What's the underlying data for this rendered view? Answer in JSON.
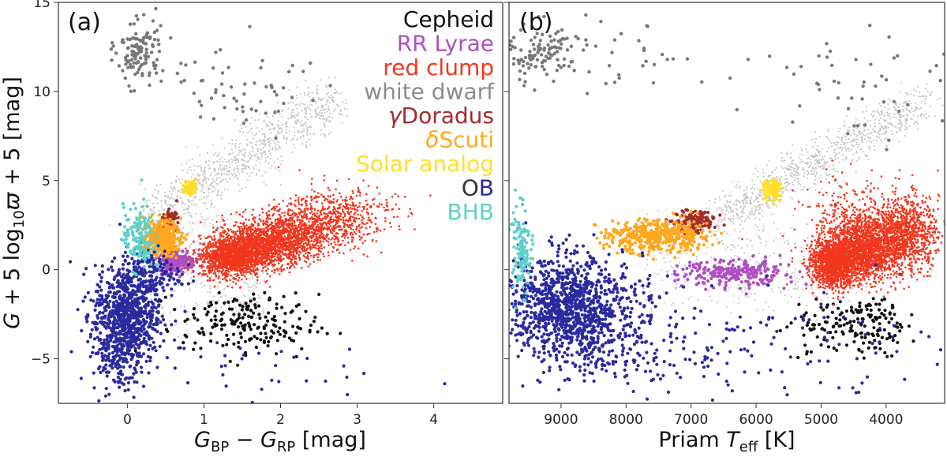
{
  "figure": {
    "ylabel": "G + 5 log₁₀ϖ + 5 [mag]"
  },
  "colors": {
    "background_stars": "#c8c8c8",
    "cepheid": "#111111",
    "rr_lyrae": "#b04fc0",
    "red_clump": "#f0371e",
    "white_dwarf": "#787878",
    "gamma_doradus": "#a52a2a",
    "delta_scuti": "#ffa81f",
    "solar_analog": "#ffdf2a",
    "ob": "#2a2a9e",
    "ob_first": "#333333",
    "bhb": "#5fd0c8"
  },
  "chart_data": [
    {
      "panel": "(a)",
      "type": "scatter",
      "xlabel": "G_BP − G_RP [mag]",
      "xlabel_main": "G",
      "xlabel_sub1": "BP",
      "xlabel_minus": " − ",
      "xlabel_sub2": "RP",
      "xlabel_unit": " [mag]",
      "ylabel": "G + 5 log10 ϖ + 5 [mag]",
      "xlim": [
        -0.9,
        4.9
      ],
      "ylim": [
        15.0,
        -7.5
      ],
      "xticks": [
        0,
        1,
        2,
        3,
        4
      ],
      "yticks": [
        -5,
        0,
        5,
        10,
        15
      ],
      "legend": {
        "position": "top-right",
        "entries": [
          {
            "label": "Cepheid",
            "color": "#111111"
          },
          {
            "label": "RR Lyrae",
            "color": "#b04fc0"
          },
          {
            "label": "red clump",
            "color": "#f0371e"
          },
          {
            "label": "white dwarf",
            "color": "#8c8c8c"
          },
          {
            "label": "γDoradus",
            "color": "#a52a2a"
          },
          {
            "label": "δScuti",
            "color": "#ffa81f"
          },
          {
            "label": "Solar analog",
            "color": "#ffdf2a"
          },
          {
            "label": "OB",
            "color": "#2a2a9e"
          },
          {
            "label": "BHB",
            "color": "#5fd0c8"
          }
        ]
      },
      "series": [
        {
          "name": "Cepheid",
          "color": "#111111",
          "centers": [
            [
              1.6,
              -3.2,
              0.45,
              0.9,
              150
            ],
            [
              1.4,
              -2.6,
              0.3,
              0.7,
              50
            ]
          ]
        },
        {
          "name": "RR Lyrae",
          "color": "#b04fc0",
          "centers": [
            [
              0.65,
              0.5,
              0.12,
              0.35,
              220
            ]
          ]
        },
        {
          "name": "red clump",
          "color": "#f0371e",
          "centers": [
            [
              1.35,
              0.7,
              0.2,
              0.55,
              1300
            ],
            [
              1.8,
              1.4,
              0.3,
              0.6,
              1300
            ],
            [
              2.3,
              2.2,
              0.35,
              0.7,
              800
            ],
            [
              2.8,
              3.2,
              0.35,
              0.8,
              350
            ]
          ]
        },
        {
          "name": "white dwarf",
          "color": "#787878",
          "centers": [
            [
              0.15,
              12.2,
              0.15,
              0.9,
              120
            ],
            [
              1.1,
              10.3,
              0.5,
              0.9,
              30
            ],
            [
              1.8,
              9.8,
              0.5,
              1.5,
              30
            ]
          ]
        },
        {
          "name": "γDoradus",
          "color": "#a52a2a",
          "centers": [
            [
              0.55,
              2.8,
              0.05,
              0.25,
              80
            ]
          ]
        },
        {
          "name": "δScuti",
          "color": "#ffa81f",
          "centers": [
            [
              0.45,
              1.8,
              0.12,
              0.5,
              350
            ]
          ]
        },
        {
          "name": "Solar analog",
          "color": "#ffdf2a",
          "centers": [
            [
              0.82,
              4.6,
              0.04,
              0.2,
              70
            ]
          ]
        },
        {
          "name": "OB",
          "color": "#2a2a9e",
          "centers": [
            [
              0.0,
              -2.5,
              0.22,
              1.4,
              700
            ],
            [
              -0.1,
              -4.5,
              0.18,
              1.2,
              200
            ],
            [
              0.3,
              -0.3,
              0.2,
              0.8,
              150
            ],
            [
              1.5,
              -5.5,
              0.8,
              0.9,
              30
            ]
          ]
        },
        {
          "name": "BHB",
          "color": "#5fd0c8",
          "centers": [
            [
              0.15,
              1.8,
              0.1,
              0.9,
              150
            ]
          ]
        }
      ]
    },
    {
      "panel": "(b)",
      "type": "scatter",
      "xlabel": "Priam T_eff [K]",
      "xlabel_main": "Priam ",
      "xlabel_var": "T",
      "xlabel_sub": "eff",
      "xlabel_unit": " [K]",
      "xlim": [
        9800,
        3100
      ],
      "ylim": [
        15.0,
        -7.5
      ],
      "xticks": [
        9000,
        8000,
        7000,
        6000,
        5000,
        4000
      ],
      "series": [
        {
          "name": "Cepheid",
          "color": "#111111",
          "centers": [
            [
              4800,
              -3.2,
              350,
              0.8,
              90
            ],
            [
              4100,
              -3.0,
              250,
              0.9,
              90
            ]
          ]
        },
        {
          "name": "RR Lyrae",
          "color": "#b04fc0",
          "centers": [
            [
              6300,
              -0.2,
              450,
              0.35,
              250
            ]
          ]
        },
        {
          "name": "red clump",
          "color": "#f0371e",
          "centers": [
            [
              4800,
              0.4,
              180,
              0.7,
              1500
            ],
            [
              4300,
              1.2,
              250,
              0.9,
              1500
            ],
            [
              3700,
              2.0,
              250,
              1.0,
              1000
            ],
            [
              4500,
              2.8,
              400,
              1.2,
              300
            ]
          ]
        },
        {
          "name": "white dwarf",
          "color": "#787878",
          "centers": [
            [
              9300,
              12.0,
              250,
              0.8,
              100
            ],
            [
              8200,
              12.3,
              700,
              1.0,
              40
            ],
            [
              4600,
              10.0,
              700,
              1.5,
              50
            ]
          ]
        },
        {
          "name": "γDoradus",
          "color": "#a52a2a",
          "centers": [
            [
              6950,
              2.7,
              180,
              0.3,
              130
            ]
          ]
        },
        {
          "name": "δScuti",
          "color": "#ffa81f",
          "centers": [
            [
              7500,
              1.9,
              400,
              0.45,
              450
            ]
          ]
        },
        {
          "name": "Solar analog",
          "color": "#ffdf2a",
          "centers": [
            [
              5750,
              4.5,
              70,
              0.25,
              110
            ]
          ]
        },
        {
          "name": "OB",
          "color": "#2a2a9e",
          "centers": [
            [
              9000,
              -2.0,
              450,
              1.4,
              900
            ],
            [
              8300,
              -3.0,
              500,
              1.6,
              300
            ],
            [
              7000,
              -4.5,
              1800,
              1.6,
              200
            ]
          ]
        },
        {
          "name": "BHB",
          "color": "#5fd0c8",
          "centers": [
            [
              9600,
              1.2,
              70,
              1.2,
              130
            ]
          ]
        }
      ]
    }
  ]
}
